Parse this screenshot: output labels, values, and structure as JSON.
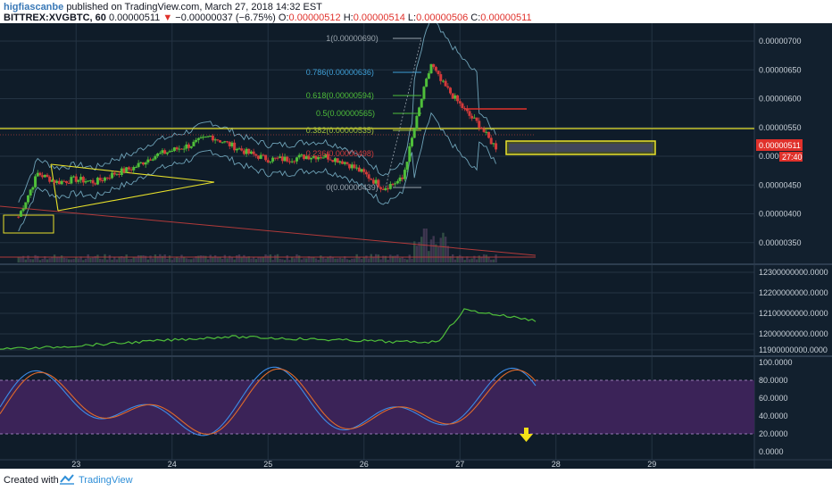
{
  "header": {
    "username": "higfiascanbe",
    "published_text": "published on TradingView.com, March 27, 2018 14:32 EST",
    "symbol": "BITTREX:XVGBTC, 60",
    "last": "0.00000511",
    "change": "−0.00000037 (−6.75%)",
    "o_label": "O:",
    "o_value": "0.00000512",
    "h_label": "H:",
    "h_value": "0.00000514",
    "l_label": "L:",
    "l_value": "0.00000506",
    "c_label": "C:",
    "c_value": "0.00000511"
  },
  "footer": {
    "created_with": "Created with",
    "brand": "TradingView"
  },
  "colors": {
    "bg": "#12202e",
    "grid": "#243343",
    "up": "#4fbe3a",
    "down": "#d23a3a",
    "yellow": "#e8e12a",
    "purple": "#4a2a6e",
    "bb": "#6fa3b8",
    "stoch_k": "#3c8ce7",
    "stoch_d": "#e06a2a",
    "price_tag": "#e0312b"
  },
  "price_axis": [
    "0.00000700",
    "0.00000650",
    "0.00000600",
    "0.00000550",
    "0.00000500",
    "0.00000450",
    "0.00000400",
    "0.00000350"
  ],
  "current_price_tag": "0.00000511",
  "countdown_tag": "27:40",
  "fib_levels": [
    {
      "label": "1(0.00000690)",
      "color": "#9aa4ad"
    },
    {
      "label": "0.786(0.00000636)",
      "color": "#3fa0d8"
    },
    {
      "label": "0.618(0.00000594)",
      "color": "#4fbe3a"
    },
    {
      "label": "0.5(0.00000565)",
      "color": "#4fbe3a"
    },
    {
      "label": "0.382(0.00000535)",
      "color": "#a3c13a"
    },
    {
      "label": "0.236(0.00000498)",
      "color": "#d23a3a"
    },
    {
      "label": "0(0.00000439)",
      "color": "#9aa4ad"
    }
  ],
  "obv_axis": [
    "12300000000.0000",
    "12200000000.0000",
    "12100000000.0000",
    "12000000000.0000",
    "11900000000.0000"
  ],
  "stoch_axis": [
    "100.0000",
    "80.0000",
    "60.0000",
    "40.0000",
    "20.0000",
    "0.0000"
  ],
  "x_axis": [
    "23",
    "24",
    "25",
    "26",
    "27",
    "28",
    "29"
  ],
  "chart_data": {
    "type": "candlestick",
    "title": "BITTREX:XVGBTC, 60",
    "x": [
      22.4,
      22.6,
      22.8,
      23.0,
      23.2,
      23.4,
      23.6,
      23.8,
      24.0,
      24.2,
      24.4,
      24.6,
      24.8,
      25.0,
      25.2,
      25.4,
      25.6,
      25.8,
      26.0,
      26.2,
      26.4,
      26.6,
      26.7,
      26.8,
      26.9,
      27.0,
      27.1,
      27.2,
      27.3,
      27.4
    ],
    "close": [
      3.95,
      4.7,
      4.55,
      4.6,
      4.55,
      4.7,
      4.8,
      5.0,
      5.1,
      5.2,
      5.35,
      5.2,
      5.05,
      4.95,
      4.95,
      5.0,
      5.0,
      4.9,
      4.7,
      4.45,
      4.6,
      6.0,
      6.6,
      6.3,
      6.1,
      5.9,
      5.7,
      5.55,
      5.3,
      5.11
    ],
    "ylim": [
      3.2e-06,
      7.1e-06
    ],
    "y_unit": "BTC x 1e-6"
  }
}
